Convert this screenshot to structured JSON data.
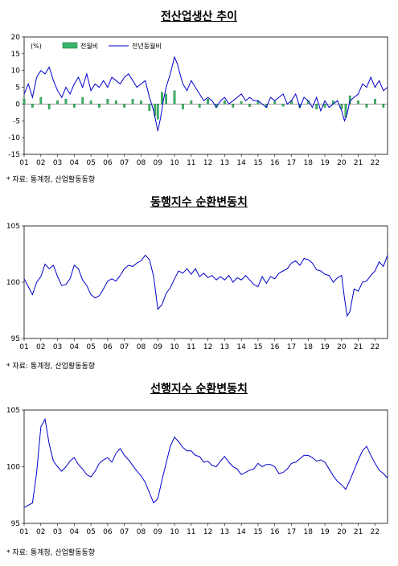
{
  "charts": [
    {
      "title": "전산업생산 추이",
      "source": "* 자료: 통계청, 산업활동동향",
      "unit": "(%)",
      "legend": [
        "전월비",
        "전년동월비"
      ],
      "x_tick_labels": [
        "01",
        "02",
        "03",
        "04",
        "05",
        "06",
        "07",
        "08",
        "09",
        "10",
        "11",
        "12",
        "13",
        "14",
        "15",
        "16",
        "17",
        "18",
        "19",
        "20",
        "21",
        "22"
      ],
      "y_tick_labels": [
        "20",
        "15",
        "10",
        "5",
        "0",
        "-5",
        "-10",
        "-15"
      ]
    },
    {
      "title": "동행지수 순환변동치",
      "source": "* 자료: 통계청, 산업활동동향",
      "x_tick_labels": [
        "01",
        "02",
        "03",
        "04",
        "05",
        "06",
        "07",
        "08",
        "09",
        "10",
        "11",
        "12",
        "13",
        "14",
        "15",
        "16",
        "17",
        "18",
        "19",
        "20",
        "21",
        "22"
      ],
      "y_tick_labels": [
        "105",
        "100",
        "95"
      ]
    },
    {
      "title": "선행지수 순환변동치",
      "source": "* 자료: 통계청, 산업활동동향",
      "x_tick_labels": [
        "01",
        "02",
        "03",
        "04",
        "05",
        "06",
        "07",
        "08",
        "09",
        "10",
        "11",
        "12",
        "13",
        "14",
        "15",
        "16",
        "17",
        "18",
        "19",
        "20",
        "21",
        "22"
      ],
      "y_tick_labels": [
        "105",
        "100",
        "95"
      ]
    }
  ],
  "chart_data": [
    {
      "type": "bar+line",
      "title": "전산업생산 추이",
      "ylabel": "(%)",
      "ylim": [
        -15,
        20
      ],
      "xlim": [
        2001.0,
        2022.75
      ],
      "grid": false,
      "legend_position": "top-left",
      "colors": {
        "bar": "#3cb371",
        "bar_edge": "#006400",
        "line": "#0000cd"
      },
      "series": [
        {
          "name": "전년동월비",
          "kind": "line",
          "x": [
            2001.0,
            2001.25,
            2001.5,
            2001.75,
            2002.0,
            2002.25,
            2002.5,
            2002.75,
            2003.0,
            2003.25,
            2003.5,
            2003.75,
            2004.0,
            2004.25,
            2004.5,
            2004.75,
            2005.0,
            2005.25,
            2005.5,
            2005.75,
            2006.0,
            2006.25,
            2006.5,
            2006.75,
            2007.0,
            2007.25,
            2007.5,
            2007.75,
            2008.0,
            2008.25,
            2008.5,
            2008.75,
            2009.0,
            2009.17,
            2009.33,
            2009.5,
            2009.75,
            2010.0,
            2010.17,
            2010.33,
            2010.5,
            2010.75,
            2011.0,
            2011.25,
            2011.5,
            2011.75,
            2012.0,
            2012.25,
            2012.5,
            2012.75,
            2013.0,
            2013.25,
            2013.5,
            2013.75,
            2014.0,
            2014.25,
            2014.5,
            2014.75,
            2015.0,
            2015.25,
            2015.5,
            2015.75,
            2016.0,
            2016.25,
            2016.5,
            2016.75,
            2017.0,
            2017.25,
            2017.5,
            2017.75,
            2018.0,
            2018.25,
            2018.5,
            2018.75,
            2019.0,
            2019.25,
            2019.5,
            2019.75,
            2020.0,
            2020.17,
            2020.33,
            2020.5,
            2020.75,
            2021.0,
            2021.25,
            2021.5,
            2021.75,
            2022.0,
            2022.25,
            2022.5,
            2022.75
          ],
          "values": [
            3,
            6,
            2,
            8,
            10,
            9,
            11,
            7,
            4,
            2,
            5,
            3,
            6,
            8,
            5,
            9,
            4,
            6,
            5,
            7,
            5,
            8,
            7,
            6,
            8,
            9,
            7,
            5,
            6,
            7,
            2,
            -2,
            -8,
            -4,
            1,
            5,
            9,
            14,
            12,
            9,
            6,
            4,
            7,
            5,
            3,
            1,
            2,
            1,
            -1,
            1,
            2,
            0,
            1,
            2,
            3,
            1,
            2,
            1,
            1,
            0,
            -1,
            2,
            1,
            2,
            3,
            0,
            1,
            3,
            -1,
            2,
            1,
            -1,
            2,
            -2,
            1,
            -1,
            0,
            1,
            -2,
            -5,
            -3,
            1,
            2,
            3,
            6,
            5,
            8,
            5,
            7,
            4,
            5
          ]
        },
        {
          "name": "전월비",
          "kind": "bar",
          "x": [
            2001.0,
            2001.5,
            2002.0,
            2002.5,
            2003.0,
            2003.5,
            2004.0,
            2004.5,
            2005.0,
            2005.5,
            2006.0,
            2006.5,
            2007.0,
            2007.5,
            2008.0,
            2008.5,
            2008.83,
            2009.0,
            2009.25,
            2009.5,
            2010.0,
            2010.5,
            2011.0,
            2011.5,
            2012.0,
            2012.5,
            2013.0,
            2013.5,
            2014.0,
            2014.5,
            2015.0,
            2015.5,
            2016.0,
            2016.5,
            2017.0,
            2017.5,
            2018.0,
            2018.5,
            2019.0,
            2019.5,
            2020.0,
            2020.25,
            2020.5,
            2021.0,
            2021.5,
            2022.0,
            2022.5
          ],
          "values": [
            1.5,
            -1,
            2,
            -1.5,
            1,
            1.5,
            -1,
            2,
            1,
            -1,
            1.5,
            1,
            -1,
            1.5,
            1,
            -2,
            -3.5,
            -4.5,
            3.5,
            3,
            4,
            -1.5,
            1,
            -1,
            1.5,
            -1,
            1,
            -1,
            0.8,
            -0.8,
            1,
            -1,
            0.8,
            -0.7,
            1,
            -1,
            1,
            -1.5,
            -1,
            1,
            -1.5,
            -4,
            2.5,
            1,
            -1,
            1.5,
            -1
          ]
        }
      ]
    },
    {
      "type": "line",
      "title": "동행지수 순환변동치",
      "ylim": [
        95,
        105
      ],
      "xlim": [
        2001.0,
        2022.75
      ],
      "grid": false,
      "colors": {
        "line": "#0000cd"
      },
      "x": [
        2001.0,
        2001.25,
        2001.5,
        2001.75,
        2002.0,
        2002.25,
        2002.5,
        2002.75,
        2003.0,
        2003.25,
        2003.5,
        2003.75,
        2004.0,
        2004.25,
        2004.5,
        2004.75,
        2005.0,
        2005.25,
        2005.5,
        2005.75,
        2006.0,
        2006.25,
        2006.5,
        2006.75,
        2007.0,
        2007.25,
        2007.5,
        2007.75,
        2008.0,
        2008.25,
        2008.5,
        2008.75,
        2009.0,
        2009.25,
        2009.5,
        2009.75,
        2010.0,
        2010.25,
        2010.5,
        2010.75,
        2011.0,
        2011.25,
        2011.5,
        2011.75,
        2012.0,
        2012.25,
        2012.5,
        2012.75,
        2013.0,
        2013.25,
        2013.5,
        2013.75,
        2014.0,
        2014.25,
        2014.5,
        2014.75,
        2015.0,
        2015.25,
        2015.5,
        2015.75,
        2016.0,
        2016.25,
        2016.5,
        2016.75,
        2017.0,
        2017.25,
        2017.5,
        2017.75,
        2018.0,
        2018.25,
        2018.5,
        2018.75,
        2019.0,
        2019.25,
        2019.5,
        2019.75,
        2020.0,
        2020.17,
        2020.33,
        2020.5,
        2020.75,
        2021.0,
        2021.25,
        2021.5,
        2021.75,
        2022.0,
        2022.25,
        2022.5,
        2022.75
      ],
      "values": [
        100.3,
        99.6,
        98.9,
        100.0,
        100.5,
        101.6,
        101.2,
        101.5,
        100.5,
        99.7,
        99.8,
        100.3,
        101.5,
        101.2,
        100.2,
        99.7,
        98.9,
        98.6,
        98.8,
        99.4,
        100.1,
        100.3,
        100.1,
        100.6,
        101.2,
        101.5,
        101.4,
        101.7,
        101.9,
        102.4,
        102.0,
        100.5,
        97.6,
        98.0,
        99.0,
        99.5,
        100.3,
        101.0,
        100.8,
        101.2,
        100.7,
        101.2,
        100.5,
        100.8,
        100.4,
        100.6,
        100.2,
        100.5,
        100.2,
        100.6,
        100.0,
        100.4,
        100.2,
        100.6,
        100.2,
        99.8,
        99.6,
        100.5,
        99.9,
        100.5,
        100.3,
        100.8,
        101.0,
        101.2,
        101.7,
        101.9,
        101.5,
        102.1,
        102.0,
        101.7,
        101.1,
        101.0,
        100.7,
        100.6,
        100.0,
        100.4,
        100.6,
        98.6,
        97.0,
        97.4,
        99.4,
        99.2,
        100.0,
        100.1,
        100.6,
        101.0,
        101.8,
        101.4,
        102.4
      ]
    },
    {
      "type": "line",
      "title": "선행지수 순환변동치",
      "ylim": [
        95,
        105
      ],
      "xlim": [
        2001.0,
        2022.75
      ],
      "grid": false,
      "colors": {
        "line": "#0000cd"
      },
      "x": [
        2001.0,
        2001.25,
        2001.5,
        2001.75,
        2002.0,
        2002.25,
        2002.5,
        2002.75,
        2003.0,
        2003.25,
        2003.5,
        2003.75,
        2004.0,
        2004.25,
        2004.5,
        2004.75,
        2005.0,
        2005.25,
        2005.5,
        2005.75,
        2006.0,
        2006.25,
        2006.5,
        2006.75,
        2007.0,
        2007.25,
        2007.5,
        2007.75,
        2008.0,
        2008.25,
        2008.5,
        2008.75,
        2009.0,
        2009.25,
        2009.5,
        2009.75,
        2010.0,
        2010.25,
        2010.5,
        2010.75,
        2011.0,
        2011.25,
        2011.5,
        2011.75,
        2012.0,
        2012.25,
        2012.5,
        2012.75,
        2013.0,
        2013.25,
        2013.5,
        2013.75,
        2014.0,
        2014.25,
        2014.5,
        2014.75,
        2015.0,
        2015.25,
        2015.5,
        2015.75,
        2016.0,
        2016.25,
        2016.5,
        2016.75,
        2017.0,
        2017.25,
        2017.5,
        2017.75,
        2018.0,
        2018.25,
        2018.5,
        2018.75,
        2019.0,
        2019.25,
        2019.5,
        2019.75,
        2020.0,
        2020.25,
        2020.5,
        2020.75,
        2021.0,
        2021.25,
        2021.5,
        2021.75,
        2022.0,
        2022.25,
        2022.5,
        2022.75
      ],
      "values": [
        96.4,
        96.6,
        96.8,
        99.5,
        103.5,
        104.2,
        102.0,
        100.5,
        100.0,
        99.6,
        100.0,
        100.5,
        100.8,
        100.2,
        99.8,
        99.3,
        99.1,
        99.6,
        100.3,
        100.6,
        100.8,
        100.4,
        101.2,
        101.6,
        101.0,
        100.6,
        100.1,
        99.6,
        99.2,
        98.6,
        97.7,
        96.8,
        97.2,
        98.8,
        100.3,
        101.8,
        102.6,
        102.2,
        101.7,
        101.4,
        101.4,
        101.0,
        100.9,
        100.4,
        100.5,
        100.1,
        100.0,
        100.5,
        100.9,
        100.4,
        100.0,
        99.8,
        99.3,
        99.5,
        99.7,
        99.8,
        100.3,
        100.0,
        100.2,
        100.2,
        100.0,
        99.4,
        99.5,
        99.8,
        100.3,
        100.4,
        100.7,
        101.0,
        101.0,
        100.8,
        100.5,
        100.6,
        100.4,
        99.8,
        99.2,
        98.7,
        98.4,
        98.0,
        98.8,
        99.7,
        100.6,
        101.4,
        101.8,
        101.0,
        100.3,
        99.7,
        99.4,
        99.0
      ]
    }
  ]
}
